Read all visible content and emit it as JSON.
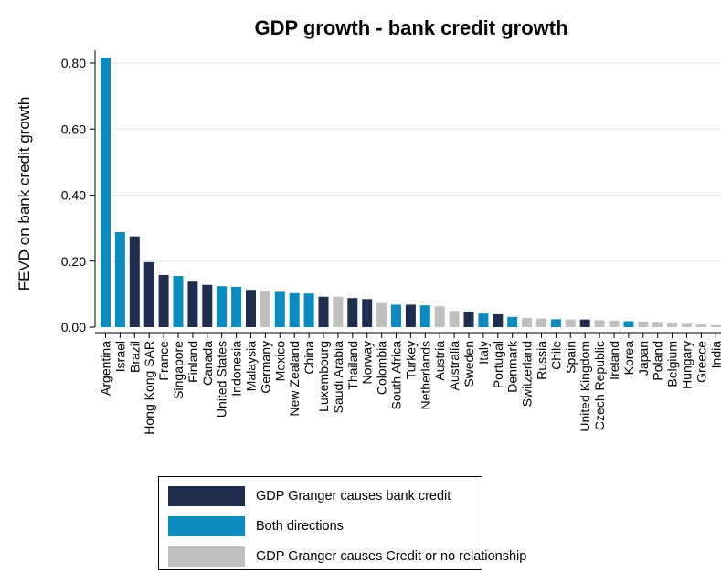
{
  "chart_data": {
    "type": "bar",
    "title": "GDP growth - bank credit growth",
    "ylabel": "FEVD on bank credit growth",
    "xlabel": "",
    "ylim": [
      0,
      0.85
    ],
    "yticks": [
      0.0,
      0.2,
      0.4,
      0.6,
      0.8
    ],
    "ytick_labels": [
      "0.00",
      "0.20",
      "0.40",
      "0.60",
      "0.80"
    ],
    "grid": "horizontal",
    "categories": [
      "Argentina",
      "Israel",
      "Brazil",
      "Hong Kong SAR",
      "France",
      "Singapore",
      "Finland",
      "Canada",
      "United States",
      "Indonesia",
      "Malaysia",
      "Germany",
      "Mexico",
      "New Zealand",
      "China",
      "Luxembourg",
      "Saudi Arabia",
      "Thailand",
      "Norway",
      "Colombia",
      "South Africa",
      "Turkey",
      "Netherlands",
      "Austria",
      "Australia",
      "Sweden",
      "Italy",
      "Portugal",
      "Denmark",
      "Switzerland",
      "Russia",
      "Chile",
      "Spain",
      "United Kingdom",
      "Czech Republic",
      "Ireland",
      "Korea",
      "Japan",
      "Poland",
      "Belgium",
      "Hungary",
      "Greece",
      "India"
    ],
    "values": [
      0.815,
      0.288,
      0.275,
      0.197,
      0.158,
      0.155,
      0.138,
      0.128,
      0.124,
      0.122,
      0.113,
      0.11,
      0.107,
      0.103,
      0.102,
      0.092,
      0.092,
      0.088,
      0.085,
      0.073,
      0.068,
      0.068,
      0.066,
      0.063,
      0.049,
      0.047,
      0.041,
      0.039,
      0.031,
      0.028,
      0.026,
      0.024,
      0.023,
      0.023,
      0.021,
      0.02,
      0.018,
      0.017,
      0.016,
      0.014,
      0.01,
      0.008,
      0.006
    ],
    "groups": [
      "both",
      "both",
      "gdp",
      "gdp",
      "gdp",
      "both",
      "gdp",
      "gdp",
      "both",
      "both",
      "gdp",
      "none",
      "both",
      "both",
      "both",
      "gdp",
      "none",
      "gdp",
      "gdp",
      "none",
      "both",
      "gdp",
      "both",
      "none",
      "none",
      "gdp",
      "both",
      "gdp",
      "both",
      "none",
      "none",
      "both",
      "none",
      "gdp",
      "none",
      "none",
      "both",
      "none",
      "none",
      "none",
      "none",
      "none",
      "none"
    ],
    "legend": [
      {
        "key": "gdp",
        "label": "GDP Granger causes bank credit"
      },
      {
        "key": "both",
        "label": "Both directions"
      },
      {
        "key": "none",
        "label": "GDP Granger causes Credit or no relationship"
      }
    ],
    "legend_position": "bottom"
  },
  "colors": {
    "gdp": "#1f2d4f",
    "both": "#0b8bbf",
    "none": "#c0c0c0",
    "grid": "#dde8ee",
    "axis": "#000000"
  }
}
